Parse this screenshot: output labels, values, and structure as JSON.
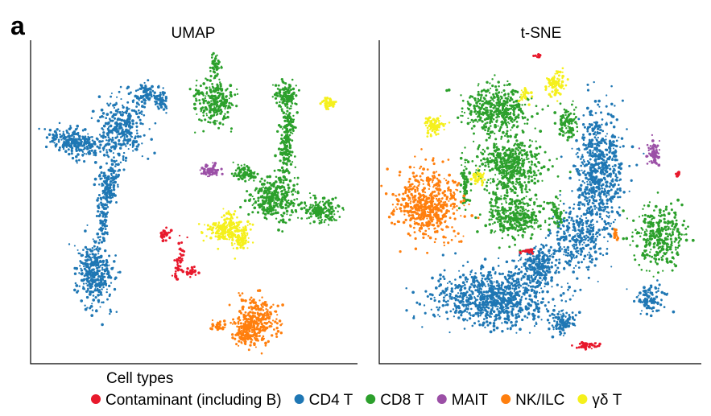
{
  "panel_letter": "a",
  "legend_title": "Cell types",
  "chart_data": [
    {
      "type": "scatter",
      "title": "UMAP",
      "xlabel": "",
      "ylabel": "",
      "axes": "left and bottom spines only, no ticks",
      "grid": false,
      "legend": "bottom"
    },
    {
      "type": "scatter",
      "title": "t-SNE",
      "xlabel": "",
      "ylabel": "",
      "axes": "left and bottom spines only, no ticks",
      "grid": false,
      "legend": "bottom"
    }
  ],
  "cell_types": [
    {
      "key": "contaminant",
      "label": "Contaminant (including B)",
      "color": "#e8192c"
    },
    {
      "key": "cd4",
      "label": "CD4 T",
      "color": "#1f77b4"
    },
    {
      "key": "cd8",
      "label": "CD8 T",
      "color": "#2ca02c"
    },
    {
      "key": "mait",
      "label": "MAIT",
      "color": "#9b4fa6"
    },
    {
      "key": "nk",
      "label": "NK/ILC",
      "color": "#ff7f0e"
    },
    {
      "key": "gd",
      "label": "γδ T",
      "color": "#f5f01c"
    }
  ]
}
